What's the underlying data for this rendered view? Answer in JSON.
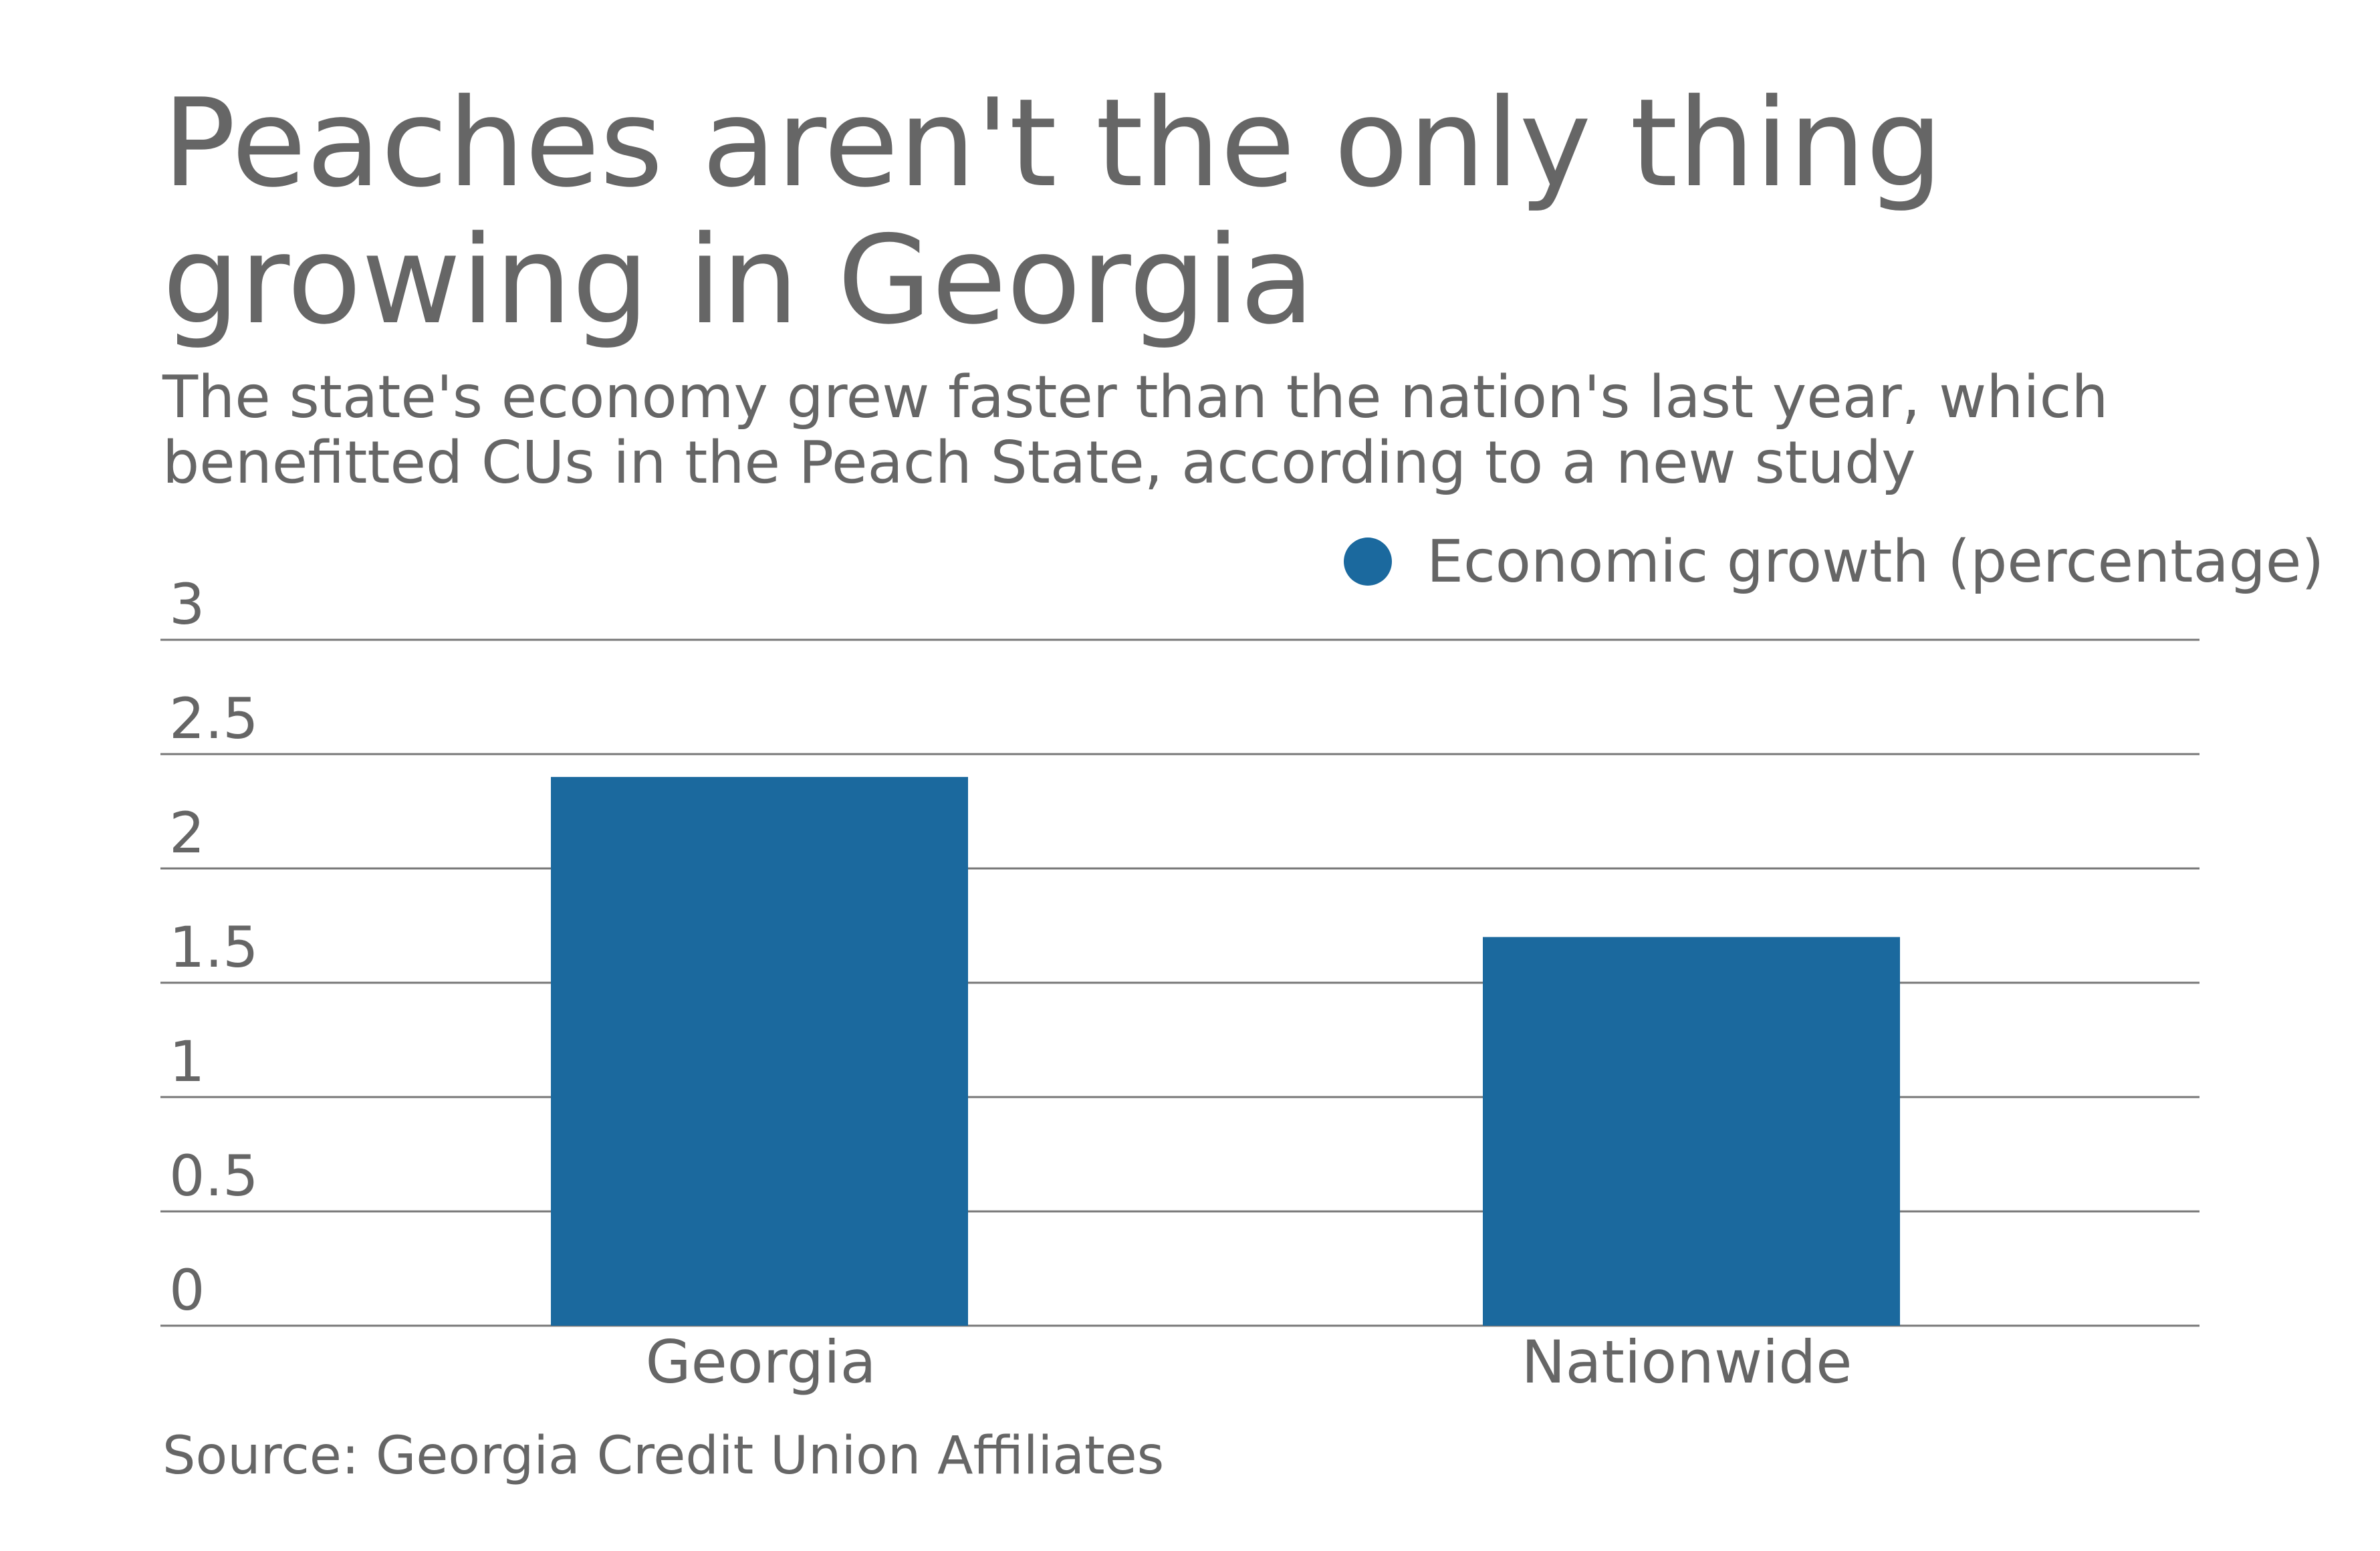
{
  "chart_data": {
    "type": "bar",
    "title": "Peaches aren't the only thing growing in Georgia",
    "subtitle": "The state's economy grew faster than the nation's last year, which benefitted CUs in the Peach State, according to a new study",
    "categories": [
      "Georgia",
      "Nationwide"
    ],
    "series": [
      {
        "name": "Economic growth (percentage)",
        "values": [
          2.4,
          1.7
        ],
        "color": "#1b699e"
      }
    ],
    "ylim": [
      0,
      3
    ],
    "yticks": [
      "0",
      "0.5",
      "1",
      "1.5",
      "2",
      "2.5",
      "3"
    ],
    "xlabel": "",
    "ylabel": "",
    "grid": true,
    "legend_position": "top-right",
    "source": "Source: Georgia Credit Union Affiliates"
  },
  "colors": {
    "text": "#666666",
    "gridline": "#777777",
    "bar": "#1b699e"
  }
}
